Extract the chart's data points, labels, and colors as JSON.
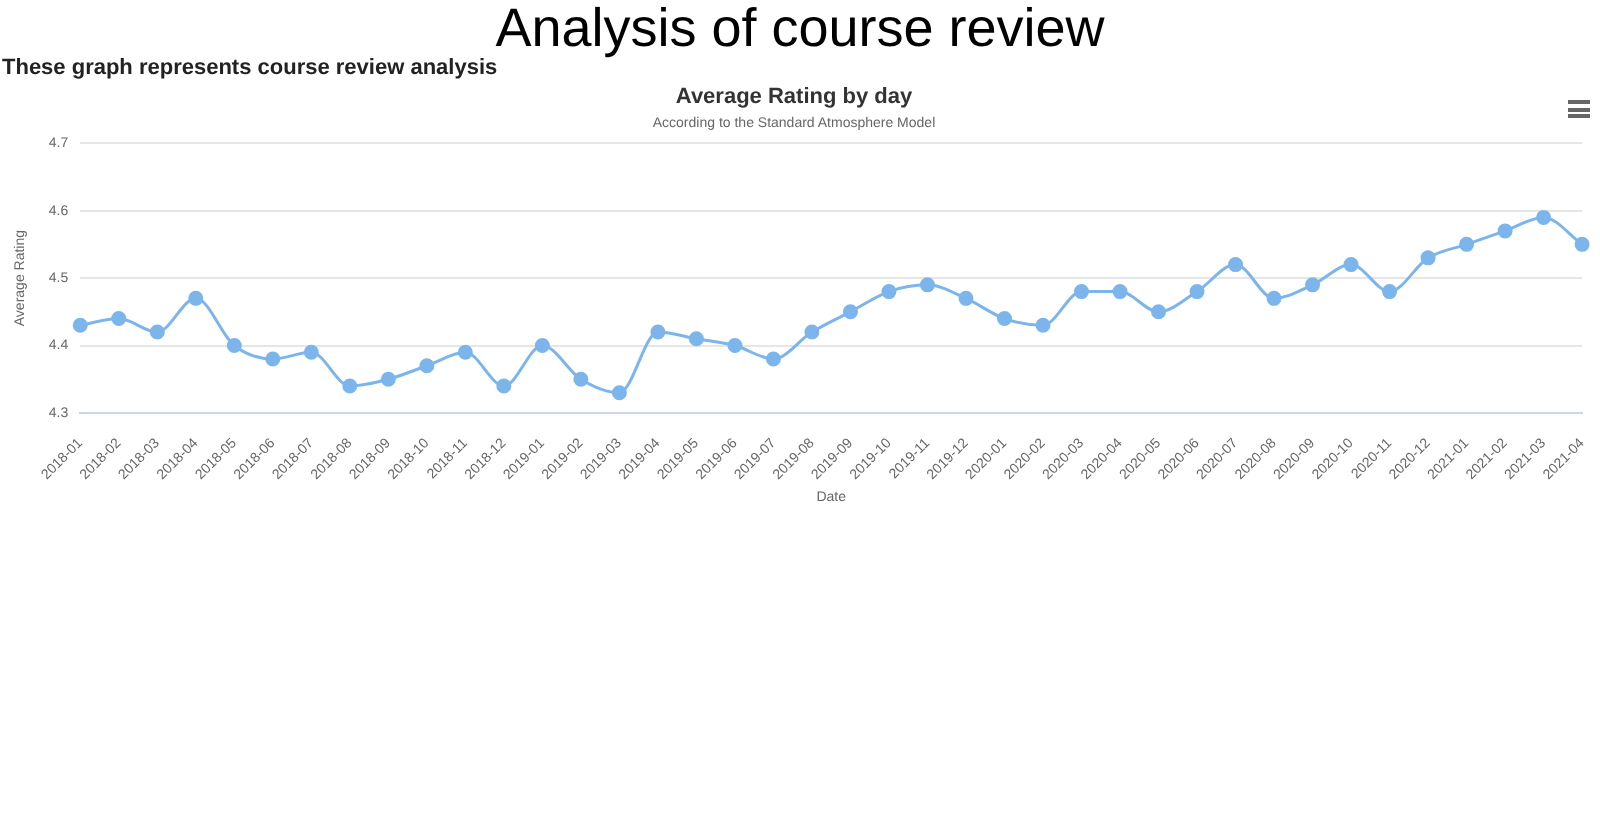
{
  "chart_data": {
    "type": "line",
    "title": "Average Rating by day",
    "subtitle": "According to the Standard Atmosphere Model",
    "xlabel": "Date",
    "ylabel": "Average Rating",
    "annotations": [
      "Analysis of course review",
      "These graph represents course review analysis"
    ],
    "categories": [
      "2018-01",
      "2018-02",
      "2018-03",
      "2018-04",
      "2018-05",
      "2018-06",
      "2018-07",
      "2018-08",
      "2018-09",
      "2018-10",
      "2018-11",
      "2018-12",
      "2019-01",
      "2019-02",
      "2019-03",
      "2019-04",
      "2019-05",
      "2019-06",
      "2019-07",
      "2019-08",
      "2019-09",
      "2019-10",
      "2019-11",
      "2019-12",
      "2020-01",
      "2020-02",
      "2020-03",
      "2020-04",
      "2020-05",
      "2020-06",
      "2020-07",
      "2020-08",
      "2020-09",
      "2020-10",
      "2020-11",
      "2020-12",
      "2021-01",
      "2021-02",
      "2021-03",
      "2021-04"
    ],
    "series": [
      {
        "color": "#7cb5ec",
        "values": [
          4.43,
          4.44,
          4.42,
          4.47,
          4.4,
          4.38,
          4.39,
          4.34,
          4.35,
          4.37,
          4.39,
          4.34,
          4.4,
          4.35,
          4.33,
          4.42,
          4.41,
          4.4,
          4.38,
          4.42,
          4.45,
          4.48,
          4.49,
          4.47,
          4.44,
          4.43,
          4.48,
          4.48,
          4.45,
          4.48,
          4.52,
          4.47,
          4.49,
          4.52,
          4.48,
          4.53,
          4.55,
          4.57,
          4.59,
          4.55
        ]
      }
    ],
    "ylim": [
      4.3,
      4.7
    ],
    "yticks": [
      4.3,
      4.4,
      4.5,
      4.6,
      4.7
    ],
    "grid": "y",
    "marker": "circle",
    "line_style": "solid"
  }
}
